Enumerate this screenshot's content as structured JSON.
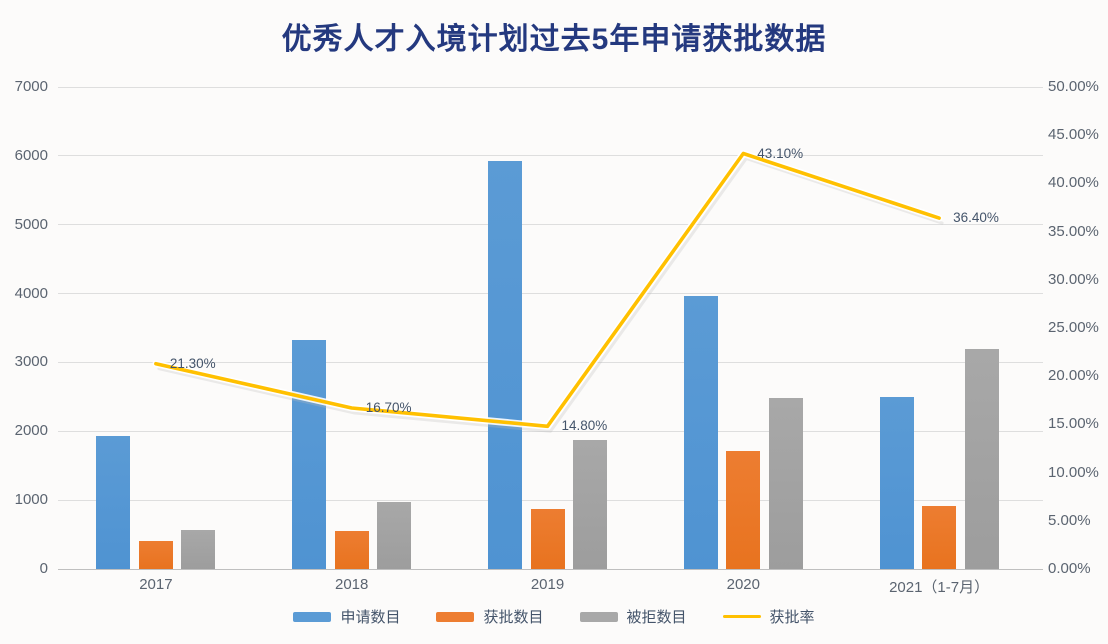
{
  "page": {
    "background": "#fcfbfa"
  },
  "chart_data": {
    "type": "combo-bar-line",
    "title": "优秀人才入境计划过去5年申请获批数据",
    "title_color": "#24397f",
    "categories": [
      "2017",
      "2018",
      "2019",
      "2020",
      "2021（1-7月）"
    ],
    "series": [
      {
        "key": "applications",
        "name": "申请数目",
        "chart": "bar",
        "axis": "left",
        "color": "#5B9BD5",
        "color2": "#4f93d2",
        "values": [
          1933,
          3330,
          5930,
          3970,
          2493
        ]
      },
      {
        "key": "approved",
        "name": "获批数目",
        "chart": "bar",
        "axis": "left",
        "color": "#ED7D31",
        "color2": "#e8731f",
        "values": [
          412,
          555,
          878,
          1709,
          908
        ]
      },
      {
        "key": "rejected",
        "name": "被拒数目",
        "chart": "bar",
        "axis": "left",
        "color": "#A8A8A8",
        "color2": "#9d9d9d",
        "values": [
          573,
          980,
          1870,
          2490,
          3197
        ]
      },
      {
        "key": "approval-rate",
        "name": "获批率",
        "chart": "line",
        "axis": "right",
        "color": "#FFC000",
        "values": [
          21.3,
          16.7,
          14.8,
          43.1,
          36.4
        ],
        "point_labels": [
          "21.30%",
          "16.70%",
          "14.80%",
          "43.10%",
          "36.40%"
        ]
      }
    ],
    "left_axis": {
      "min": 0,
      "max": 7000,
      "tick_labels": [
        "0",
        "1000",
        "2000",
        "3000",
        "4000",
        "5000",
        "6000",
        "7000"
      ]
    },
    "right_axis": {
      "min": 0,
      "max": 50,
      "tick_labels": [
        "0.00%",
        "5.00%",
        "10.00%",
        "15.00%",
        "20.00%",
        "25.00%",
        "30.00%",
        "35.00%",
        "40.00%",
        "45.00%",
        "50.00%"
      ]
    },
    "grid": true,
    "legend_position": "bottom"
  }
}
